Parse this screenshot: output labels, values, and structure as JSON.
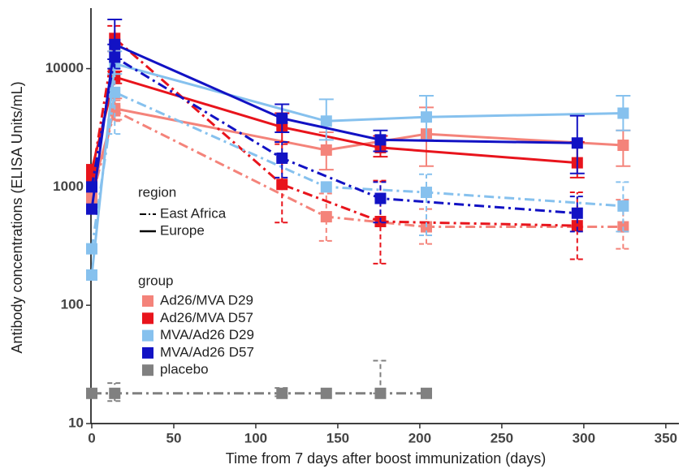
{
  "chart_data": {
    "type": "line",
    "x_label": "Time from 7 days after boost immunization (days)",
    "y_label": "Antibody concentrations (ELISA Units/mL)",
    "xlim": [
      0,
      358
    ],
    "xticks": [
      0,
      50,
      100,
      150,
      200,
      250,
      300,
      350
    ],
    "ylim": [
      10,
      30000
    ],
    "yticks": [
      10,
      100,
      1000,
      10000
    ],
    "log_y": true,
    "grid": false,
    "legend": {
      "region": {
        "title": "region",
        "items": [
          {
            "name": "East Africa",
            "dash": "12 5 3 5"
          },
          {
            "name": "Europe",
            "dash": "none"
          }
        ]
      },
      "group": {
        "title": "group",
        "items": [
          {
            "name": "Ad26/MVA D29",
            "color": "#f4837a"
          },
          {
            "name": "Ad26/MVA D57",
            "color": "#e8141c"
          },
          {
            "name": "MVA/Ad26 D29",
            "color": "#86c1ee"
          },
          {
            "name": "MVA/Ad26 D57",
            "color": "#1212c4"
          },
          {
            "name": "placebo",
            "color": "#808080"
          }
        ]
      }
    },
    "series": [
      {
        "group": "Ad26/MVA D29",
        "region": "Europe",
        "color": "#f4837a",
        "dash": "none",
        "x": [
          0,
          14,
          143,
          204,
          324
        ],
        "values": [
          900,
          4600,
          2050,
          2800,
          2250
        ],
        "lower": [
          null,
          3700,
          1400,
          1500,
          1500
        ],
        "upper": [
          null,
          5600,
          2900,
          4700,
          3000
        ]
      },
      {
        "group": "Ad26/MVA D29",
        "region": "East Africa",
        "color": "#f4837a",
        "dash": "12 5 3 5",
        "x": [
          0,
          14,
          143,
          204,
          324
        ],
        "values": [
          800,
          4400,
          560,
          460,
          460
        ],
        "lower": [
          null,
          3600,
          350,
          330,
          300
        ],
        "upper": [
          null,
          5400,
          880,
          650,
          780
        ]
      },
      {
        "group": "Ad26/MVA D57",
        "region": "Europe",
        "color": "#e8141c",
        "dash": "none",
        "x": [
          0,
          14,
          116,
          176,
          296
        ],
        "values": [
          1400,
          8500,
          3200,
          2150,
          1600
        ],
        "lower": [
          null,
          7500,
          2400,
          1800,
          1200
        ],
        "upper": [
          null,
          9500,
          4200,
          2700,
          2400
        ]
      },
      {
        "group": "Ad26/MVA D57",
        "region": "East Africa",
        "color": "#e8141c",
        "dash": "12 5 3 5",
        "x": [
          0,
          14,
          116,
          176,
          296
        ],
        "values": [
          1200,
          18000,
          1050,
          510,
          470
        ],
        "lower": [
          null,
          14000,
          500,
          225,
          245
        ],
        "upper": [
          null,
          23000,
          2300,
          1130,
          900
        ]
      },
      {
        "group": "MVA/Ad26 D29",
        "region": "Europe",
        "color": "#86c1ee",
        "dash": "none",
        "x": [
          0,
          14,
          143,
          204,
          324
        ],
        "values": [
          180,
          11000,
          3600,
          3900,
          4200
        ],
        "lower": [
          null,
          9000,
          2500,
          2500,
          3000
        ],
        "upper": [
          null,
          14000,
          5500,
          5900,
          5900
        ]
      },
      {
        "group": "MVA/Ad26 D29",
        "region": "East Africa",
        "color": "#86c1ee",
        "dash": "12 5 3 5",
        "x": [
          0,
          14,
          143,
          204,
          324
        ],
        "values": [
          300,
          6300,
          1000,
          900,
          690
        ],
        "lower": [
          null,
          2800,
          null,
          390,
          420
        ],
        "upper": [
          null,
          12000,
          null,
          1280,
          1100
        ]
      },
      {
        "group": "MVA/Ad26 D57",
        "region": "Europe",
        "color": "#1212c4",
        "dash": "none",
        "x": [
          0,
          14,
          116,
          176,
          296
        ],
        "values": [
          650,
          16000,
          3800,
          2500,
          2350
        ],
        "lower": [
          null,
          12000,
          2900,
          2000,
          1300
        ],
        "upper": [
          null,
          26000,
          5000,
          3000,
          4000
        ]
      },
      {
        "group": "MVA/Ad26 D57",
        "region": "East Africa",
        "color": "#1212c4",
        "dash": "12 5 3 5",
        "x": [
          0,
          14,
          116,
          176,
          296
        ],
        "values": [
          1000,
          12500,
          1750,
          800,
          600
        ],
        "lower": [
          null,
          10000,
          1200,
          500,
          420
        ],
        "upper": [
          null,
          16000,
          2400,
          1100,
          830
        ]
      },
      {
        "group": "placebo",
        "region": "East Africa",
        "color": "#808080",
        "dash": "12 5 3 5",
        "x": [
          0,
          14,
          116,
          143,
          176,
          204
        ],
        "values": [
          18,
          18,
          18,
          18,
          18,
          18
        ],
        "lower": [
          null,
          15.5,
          17,
          null,
          18,
          null
        ],
        "upper": [
          null,
          22,
          20,
          null,
          34,
          null
        ]
      }
    ]
  }
}
